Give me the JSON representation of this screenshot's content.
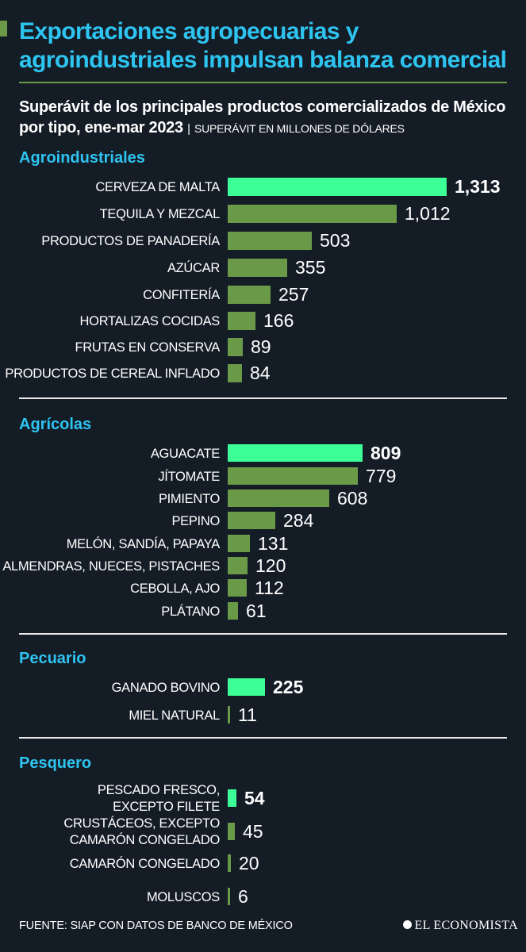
{
  "title": "Exportaciones agropecuarias y agroindustriales impulsan balanza comercial",
  "subtitle": "Superávit de los principales productos comercializados de México por tipo, ene-mar 2023",
  "unit_sep": "|",
  "unit": "SUPERÁVIT EN MILLONES DE DÓLARES",
  "source": "FUENTE: SIAP CON DATOS DE BANCO DE MÉXICO",
  "logo": "EL ECONOMISTA",
  "colors": {
    "title": "#2ec4f0",
    "bar": "#6a9a48",
    "highlight": "#3cff98",
    "background": "#141c26"
  },
  "chart_data": [
    {
      "type": "bar",
      "orientation": "horizontal",
      "title": "Agroindustriales",
      "categories": [
        "CERVEZA DE MALTA",
        "TEQUILA Y MEZCAL",
        "PRODUCTOS DE PANADERÍA",
        "AZÚCAR",
        "CONFITERÍA",
        "HORTALIZAS COCIDAS",
        "FRUTAS EN CONSERVA",
        "PRODUCTOS DE CEREAL INFLADO"
      ],
      "values": [
        1313,
        1012,
        503,
        355,
        257,
        166,
        89,
        84
      ],
      "labels": [
        "1,313",
        "1,012",
        "503",
        "355",
        "257",
        "166",
        "89",
        "84"
      ],
      "highlight_index": 0
    },
    {
      "type": "bar",
      "orientation": "horizontal",
      "title": "Agrícolas",
      "categories": [
        "AGUACATE",
        "JÍTOMATE",
        "PIMIENTO",
        "PEPINO",
        "MELÓN, SANDÍA, PAPAYA",
        "ALMENDRAS, NUECES, PISTACHES",
        "CEBOLLA, AJO",
        "PLÁTANO"
      ],
      "values": [
        809,
        779,
        608,
        284,
        131,
        120,
        112,
        61
      ],
      "labels": [
        "809",
        "779",
        "608",
        "284",
        "131",
        "120",
        "112",
        "61"
      ],
      "highlight_index": 0
    },
    {
      "type": "bar",
      "orientation": "horizontal",
      "title": "Pecuario",
      "categories": [
        "GANADO BOVINO",
        "MIEL NATURAL"
      ],
      "values": [
        225,
        11
      ],
      "labels": [
        "225",
        "11"
      ],
      "highlight_index": 0
    },
    {
      "type": "bar",
      "orientation": "horizontal",
      "title": "Pesquero",
      "categories": [
        "PESCADO FRESCO, EXCEPTO FILETE",
        "CRUSTÁCEOS, EXCEPTO CAMARÓN CONGELADO",
        "CAMARÓN CONGELADO",
        "MOLUSCOS"
      ],
      "category_lines": [
        [
          "PESCADO FRESCO,",
          "EXCEPTO FILETE"
        ],
        [
          "CRUSTÁCEOS, EXCEPTO",
          "CAMARÓN CONGELADO"
        ],
        [
          "CAMARÓN CONGELADO"
        ],
        [
          "MOLUSCOS"
        ]
      ],
      "values": [
        54,
        45,
        20,
        6
      ],
      "labels": [
        "54",
        "45",
        "20",
        "6"
      ],
      "highlight_index": 0
    }
  ]
}
